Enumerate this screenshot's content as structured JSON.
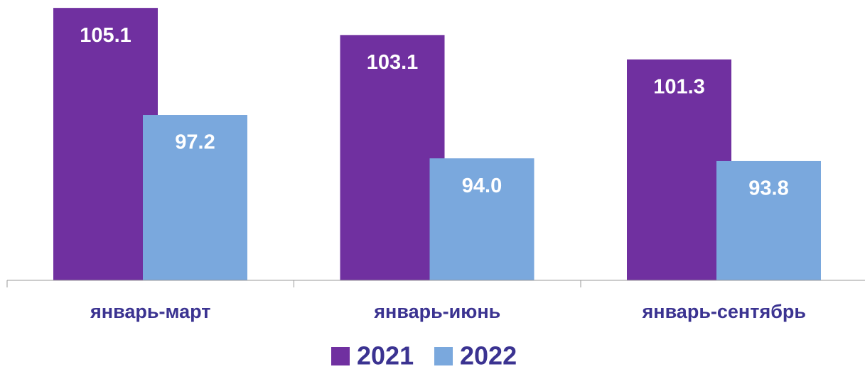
{
  "chart_data": {
    "type": "bar",
    "categories": [
      "январь-март",
      "январь-июнь",
      "январь-сентябрь"
    ],
    "series": [
      {
        "name": "2021",
        "color": "#7030a0",
        "values": [
          105.1,
          103.1,
          101.3
        ],
        "value_labels": [
          "105.1",
          "103.1",
          "101.3"
        ]
      },
      {
        "name": "2022",
        "color": "#7aa8dd",
        "values": [
          97.2,
          94.0,
          93.8
        ],
        "value_labels": [
          "97.2",
          "94.0",
          "93.8"
        ]
      }
    ],
    "ylim": [
      85,
      105.5
    ],
    "legend": "bottom"
  }
}
